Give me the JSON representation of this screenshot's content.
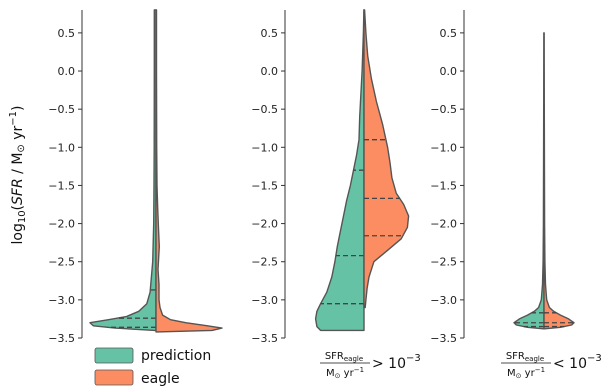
{
  "chart_data": {
    "type": "violin",
    "ylabel": "log10(SFR / M⊙ yr⁻¹)",
    "ylabel_parts": {
      "log": "log",
      "sub": "10",
      "open": "(",
      "sfr": "SFR",
      "slash": " / M",
      "sun": "⊙",
      "unit": " yr",
      "sup": "−1",
      "close": ")"
    },
    "ylim": [
      -3.5,
      0.8
    ],
    "yticks": [
      -3.5,
      -3.0,
      -2.5,
      -2.0,
      -1.5,
      -1.0,
      -0.5,
      0.0,
      0.5
    ],
    "ytick_labels": [
      "−3.5",
      "−3.0",
      "−2.5",
      "−2.0",
      "−1.5",
      "−1.0",
      "−0.5",
      "0.0",
      "0.5"
    ],
    "colors": {
      "prediction": "#66c2a5",
      "eagle": "#fc8d62",
      "outline": "#555555",
      "axis": "#333333"
    },
    "legend": {
      "placement": "bottom-left",
      "entries": [
        {
          "name": "prediction",
          "color": "#66c2a5"
        },
        {
          "name": "eagle",
          "color": "#fc8d62"
        }
      ]
    },
    "panels": [
      {
        "category_label": "",
        "series": [
          {
            "name": "prediction",
            "side": "left",
            "profile": [
              [
                -3.4,
                0.02
              ],
              [
                -3.37,
                0.62
              ],
              [
                -3.34,
                0.95
              ],
              [
                -3.3,
                1.0
              ],
              [
                -3.26,
                0.72
              ],
              [
                -3.22,
                0.45
              ],
              [
                -3.15,
                0.26
              ],
              [
                -3.05,
                0.14
              ],
              [
                -2.9,
                0.09
              ],
              [
                -2.5,
                0.05
              ],
              [
                -2.0,
                0.035
              ],
              [
                -1.5,
                0.03
              ],
              [
                -1.0,
                0.028
              ],
              [
                0.0,
                0.025
              ],
              [
                0.8,
                0.025
              ]
            ],
            "quartiles": [
              -3.36,
              -3.24,
              -2.87
            ]
          },
          {
            "name": "eagle",
            "side": "right",
            "profile": [
              [
                -3.42,
                0.02
              ],
              [
                -3.4,
                0.85
              ],
              [
                -3.37,
                1.0
              ],
              [
                -3.34,
                0.78
              ],
              [
                -3.3,
                0.45
              ],
              [
                -3.26,
                0.22
              ],
              [
                -3.2,
                0.1
              ],
              [
                -3.1,
                0.06
              ],
              [
                -3.0,
                0.045
              ],
              [
                -2.8,
                0.045
              ],
              [
                -2.6,
                0.03
              ],
              [
                -2.3,
                0.05
              ],
              [
                -2.1,
                0.04
              ],
              [
                -1.8,
                0.025
              ],
              [
                -1.5,
                0.015
              ],
              [
                -1.0,
                0.01
              ],
              [
                0.0,
                0.008
              ],
              [
                0.8,
                0.008
              ]
            ],
            "quartiles": []
          }
        ]
      },
      {
        "category_label": "",
        "series": [
          {
            "name": "prediction",
            "side": "left",
            "profile": [
              [
                -3.4,
                0.7
              ],
              [
                -3.35,
                0.76
              ],
              [
                -3.25,
                0.78
              ],
              [
                -3.15,
                0.76
              ],
              [
                -3.05,
                0.7
              ],
              [
                -2.9,
                0.6
              ],
              [
                -2.7,
                0.52
              ],
              [
                -2.5,
                0.47
              ],
              [
                -2.3,
                0.43
              ],
              [
                -2.1,
                0.38
              ],
              [
                -1.9,
                0.33
              ],
              [
                -1.7,
                0.28
              ],
              [
                -1.5,
                0.22
              ],
              [
                -1.3,
                0.17
              ],
              [
                -1.1,
                0.12
              ],
              [
                -0.9,
                0.08
              ],
              [
                -0.6,
                0.07
              ],
              [
                -0.3,
                0.05
              ],
              [
                0.0,
                0.03
              ],
              [
                0.5,
                0.01
              ],
              [
                0.8,
                0.002
              ]
            ],
            "quartiles": [
              -3.05,
              -2.42,
              -1.3
            ]
          },
          {
            "name": "eagle",
            "side": "right",
            "profile": [
              [
                -3.1,
                0.02
              ],
              [
                -3.0,
                0.03
              ],
              [
                -2.85,
                0.05
              ],
              [
                -2.7,
                0.08
              ],
              [
                -2.5,
                0.16
              ],
              [
                -2.35,
                0.38
              ],
              [
                -2.2,
                0.6
              ],
              [
                -2.05,
                0.7
              ],
              [
                -1.9,
                0.72
              ],
              [
                -1.75,
                0.64
              ],
              [
                -1.6,
                0.52
              ],
              [
                -1.4,
                0.45
              ],
              [
                -1.2,
                0.42
              ],
              [
                -1.0,
                0.38
              ],
              [
                -0.7,
                0.3
              ],
              [
                -0.4,
                0.2
              ],
              [
                -0.1,
                0.12
              ],
              [
                0.2,
                0.06
              ],
              [
                0.5,
                0.03
              ],
              [
                0.8,
                0.01
              ]
            ],
            "quartiles": [
              -2.16,
              -1.67,
              -0.9
            ]
          }
        ]
      },
      {
        "category_label": "",
        "series": [
          {
            "name": "prediction",
            "side": "left",
            "profile": [
              [
                -3.38,
                0.02
              ],
              [
                -3.36,
                0.55
              ],
              [
                -3.33,
                0.92
              ],
              [
                -3.3,
                1.0
              ],
              [
                -3.25,
                0.82
              ],
              [
                -3.2,
                0.55
              ],
              [
                -3.15,
                0.32
              ],
              [
                -3.1,
                0.18
              ],
              [
                -3.0,
                0.09
              ],
              [
                -2.8,
                0.05
              ],
              [
                -2.5,
                0.03
              ],
              [
                -2.0,
                0.02
              ],
              [
                -1.0,
                0.012
              ],
              [
                0.0,
                0.008
              ],
              [
                0.5,
                0.004
              ]
            ],
            "quartiles": [
              -3.35,
              -3.3,
              -3.17
            ]
          },
          {
            "name": "eagle",
            "side": "right",
            "profile": [
              [
                -3.38,
                0.02
              ],
              [
                -3.36,
                0.55
              ],
              [
                -3.33,
                0.92
              ],
              [
                -3.3,
                1.0
              ],
              [
                -3.25,
                0.82
              ],
              [
                -3.2,
                0.55
              ],
              [
                -3.15,
                0.32
              ],
              [
                -3.1,
                0.18
              ],
              [
                -3.0,
                0.09
              ],
              [
                -2.8,
                0.05
              ],
              [
                -2.5,
                0.03
              ],
              [
                -2.0,
                0.02
              ],
              [
                -1.0,
                0.012
              ],
              [
                0.0,
                0.008
              ],
              [
                0.5,
                0.004
              ]
            ],
            "quartiles": [
              -3.35,
              -3.3,
              -3.17
            ]
          }
        ]
      }
    ],
    "category_labels": [
      {
        "panel": 1,
        "num": "SFR",
        "num_sub": "eagle",
        "den": "M",
        "den_sun": "⊙",
        "den_unit": " yr",
        "den_sup": "−1",
        "relation": " > 10",
        "rel_sup": "−3"
      },
      {
        "panel": 2,
        "num": "SFR",
        "num_sub": "eagle",
        "den": "M",
        "den_sun": "⊙",
        "den_unit": " yr",
        "den_sup": "−1",
        "relation": " < 10",
        "rel_sup": "−3"
      }
    ]
  }
}
